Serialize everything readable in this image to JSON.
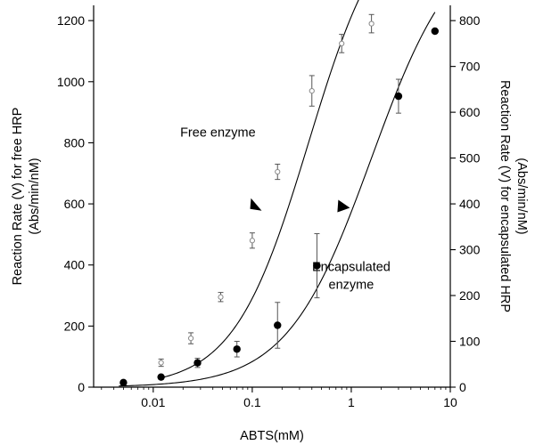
{
  "chart_data": {
    "type": "scatter",
    "xlabel": "ABTS(mM)",
    "ylabel_left": [
      "Reaction Rate (V) for free HRP",
      "(Abs/min/nM)"
    ],
    "ylabel_right": [
      "Reaction Rate (V) for encapsulated HRP",
      "(Abs/min/nM)"
    ],
    "x_scale": "log",
    "xlim": [
      0.0025,
      10
    ],
    "ylim_left": [
      0,
      1250
    ],
    "ylim_right": [
      0,
      833.33
    ],
    "x_ticks": [
      {
        "value": 0.01,
        "label": "0.01"
      },
      {
        "value": 0.1,
        "label": "0.1"
      },
      {
        "value": 1,
        "label": "1"
      },
      {
        "value": 10,
        "label": "10"
      }
    ],
    "y_ticks_left": [
      {
        "value": 0,
        "label": "0"
      },
      {
        "value": 200,
        "label": "200"
      },
      {
        "value": 400,
        "label": "400"
      },
      {
        "value": 600,
        "label": "600"
      },
      {
        "value": 800,
        "label": "800"
      },
      {
        "value": 1000,
        "label": "1000"
      },
      {
        "value": 1200,
        "label": "1200"
      }
    ],
    "y_ticks_right": [
      {
        "value": 0,
        "label": "0"
      },
      {
        "value": 100,
        "label": "100"
      },
      {
        "value": 200,
        "label": "200"
      },
      {
        "value": 300,
        "label": "300"
      },
      {
        "value": 400,
        "label": "400"
      },
      {
        "value": 500,
        "label": "500"
      },
      {
        "value": 600,
        "label": "600"
      },
      {
        "value": 700,
        "label": "700"
      },
      {
        "value": 800,
        "label": "800"
      }
    ],
    "grid": false,
    "series": [
      {
        "name": "Free enzyme",
        "axis": "left",
        "marker": "open-circle",
        "x": [
          0.012,
          0.024,
          0.048,
          0.1,
          0.18,
          0.4,
          0.8,
          1.6
        ],
        "y": [
          80,
          160,
          295,
          480,
          705,
          970,
          1125,
          1190
        ],
        "err": [
          12,
          18,
          15,
          25,
          25,
          50,
          30,
          30
        ],
        "fit": {
          "vmax": 1600,
          "km": 0.37,
          "n": 1.15,
          "xmin": 0.012,
          "xmax": 1.6
        }
      },
      {
        "name": "Encapsulated enzyme",
        "axis": "right",
        "marker": "filled-circle",
        "x": [
          0.005,
          0.012,
          0.028,
          0.07,
          0.18,
          0.45,
          3.0,
          7.0
        ],
        "y": [
          10,
          22,
          53,
          83,
          135,
          265,
          635,
          777
        ],
        "err": [
          0,
          0,
          10,
          17,
          50,
          70,
          37,
          0
        ],
        "fit": {
          "vmax": 1000,
          "km": 1.6,
          "n": 1.02,
          "xmin": 0.0045,
          "xmax": 7.0
        }
      }
    ],
    "annotations": [
      {
        "text": [
          "Free enzyme"
        ],
        "x": 0.045,
        "y_left": 820
      },
      {
        "text": [
          "Encapsulated",
          "enzyme"
        ],
        "x": 1.0,
        "y_left": 380
      }
    ],
    "arrows": [
      {
        "points_to": "left-axis",
        "x": 0.11,
        "y_left": 595
      },
      {
        "points_to": "right-axis",
        "x": 0.82,
        "y_left": 590
      }
    ]
  }
}
